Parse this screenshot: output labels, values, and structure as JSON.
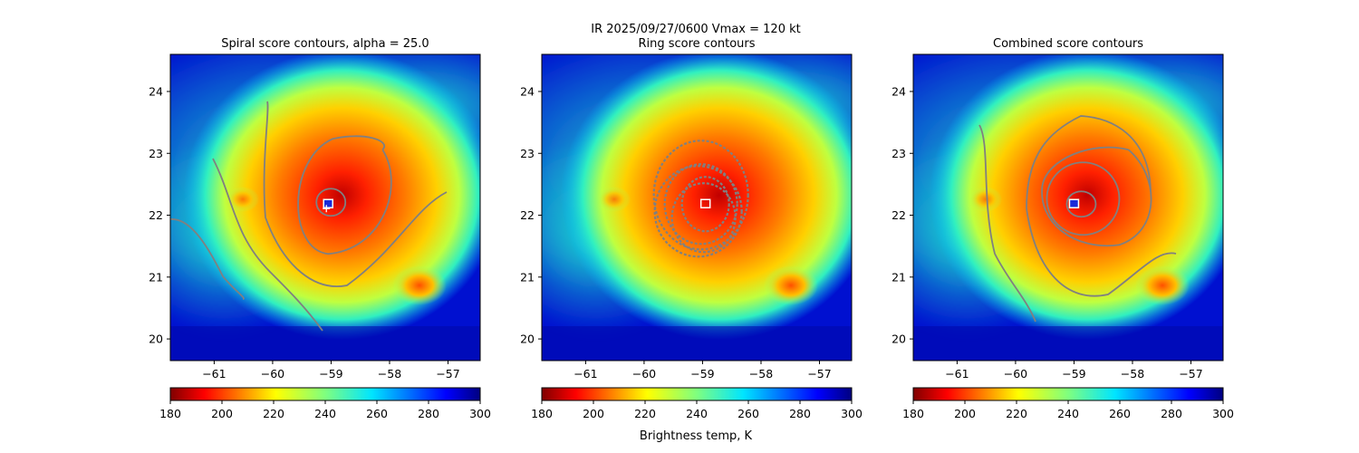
{
  "suptitle": "IR  2025/09/27/0600    Vmax = 120 kt",
  "colorbar_label": "Brightness temp, K",
  "chart_data": [
    {
      "type": "heatmap",
      "title": "Spiral score contours, alpha = 25.0",
      "xlim": [
        -61.75,
        -56.45
      ],
      "ylim": [
        19.65,
        24.6
      ],
      "xticks": [
        -61,
        -60,
        -59,
        -58,
        -57
      ],
      "yticks": [
        20,
        21,
        22,
        23,
        24
      ],
      "center": [
        -59.05,
        22.18
      ],
      "marker": "cross",
      "contour_style": "spiral"
    },
    {
      "type": "heatmap",
      "title": "Ring score contours",
      "xlim": [
        -61.75,
        -56.45
      ],
      "ylim": [
        19.65,
        24.6
      ],
      "xticks": [
        -61,
        -60,
        -59,
        -58,
        -57
      ],
      "yticks": [
        20,
        21,
        22,
        23,
        24
      ],
      "center": [
        -58.95,
        22.18
      ],
      "marker": "square",
      "contour_style": "ring"
    },
    {
      "type": "heatmap",
      "title": "Combined score contours",
      "xlim": [
        -61.75,
        -56.45
      ],
      "ylim": [
        19.65,
        24.6
      ],
      "xticks": [
        -61,
        -60,
        -59,
        -58,
        -57
      ],
      "yticks": [
        20,
        21,
        22,
        23,
        24
      ],
      "center": [
        -59.0,
        22.18
      ],
      "marker": "square",
      "contour_style": "combined"
    }
  ],
  "colorbar": {
    "vmin": 180,
    "vmax": 300,
    "ticks": [
      180,
      200,
      220,
      240,
      260,
      280,
      300
    ],
    "colormap": "jet_r"
  },
  "colors": {
    "contour": "#808080",
    "marker": "#ffffff",
    "eye": "#1a2ad8"
  }
}
